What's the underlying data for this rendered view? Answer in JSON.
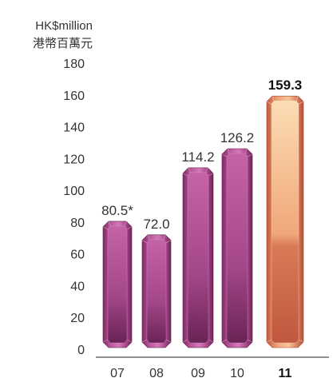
{
  "unit_en": "HK$million",
  "unit_zh": "港幣百萬元",
  "chart_data": {
    "type": "bar",
    "title": "",
    "xlabel": "",
    "ylabel": "HK$million 港幣百萬元",
    "categories": [
      "07",
      "08",
      "09",
      "10",
      "11"
    ],
    "values": [
      80.5,
      72.0,
      114.2,
      126.2,
      159.3
    ],
    "value_labels": [
      "80.5*",
      "72.0",
      "114.2",
      "126.2",
      "159.3"
    ],
    "ylim": [
      0,
      180
    ],
    "yticks": [
      0,
      20,
      40,
      60,
      80,
      100,
      120,
      140,
      160,
      180
    ],
    "highlight_index": 4,
    "colors": {
      "bar": "#b2508e",
      "highlight": "#e8906a"
    },
    "grid": false,
    "legend": "none"
  }
}
